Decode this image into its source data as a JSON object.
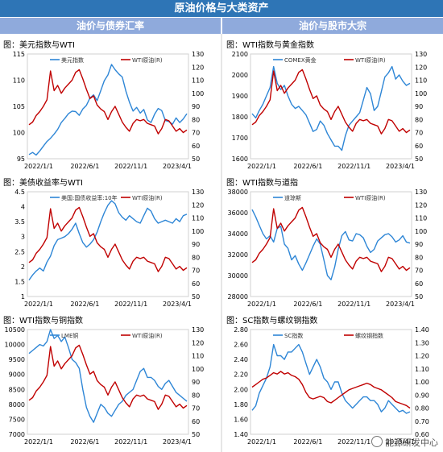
{
  "title": "原油价格与大类资产",
  "sections": {
    "left": "油价与债券汇率",
    "right": "油价与股市大宗"
  },
  "watermark": "能源研发中心",
  "colors": {
    "red": "#c00000",
    "blue": "#2e86d6"
  },
  "chart_data": [
    {
      "id": "p1",
      "type": "line",
      "title": "图：美元指数与WTI",
      "xticks": [
        "2022/1/1",
        "2022/6/1",
        "2022/11/1",
        "2023/4/1"
      ],
      "left_ylim": [
        95,
        115
      ],
      "left_ticks": [
        "95",
        "100",
        "105",
        "110",
        "115"
      ],
      "right_ylim": [
        50,
        130
      ],
      "right_ticks": [
        "50",
        "60",
        "70",
        "80",
        "90",
        "100",
        "110",
        "120",
        "130"
      ],
      "series": [
        {
          "name": "美元指数",
          "axis": "left",
          "color": "#2e86d6",
          "values": [
            95.8,
            96.2,
            95.7,
            96.5,
            97.4,
            98.3,
            98.9,
            99.7,
            100.6,
            101.9,
            102.7,
            103.6,
            104.1,
            104.0,
            103.3,
            104.5,
            105.2,
            106.6,
            107.2,
            106.1,
            108.0,
            109.9,
            111.0,
            113.0,
            112.0,
            111.2,
            110.6,
            107.9,
            105.8,
            104.1,
            104.8,
            103.7,
            104.4,
            102.4,
            101.9,
            103.5,
            104.6,
            104.2,
            102.3,
            102.1,
            101.6,
            102.8,
            101.9,
            102.6,
            103.6
          ]
        },
        {
          "name": "WTI原油(R)",
          "axis": "right",
          "color": "#c00000",
          "values": [
            76,
            78,
            83,
            86,
            90,
            95,
            117,
            102,
            106,
            100,
            104,
            107,
            110,
            116,
            118,
            111,
            103,
            96,
            98,
            91,
            88,
            86,
            80,
            86,
            90,
            84,
            78,
            74,
            71,
            77,
            80,
            79,
            80,
            77,
            76,
            75,
            69,
            73,
            80,
            79,
            75,
            71,
            73,
            70,
            72
          ]
        }
      ]
    },
    {
      "id": "p2",
      "type": "line",
      "title": "图：WTI指数与黄金指数",
      "xticks": [
        "2022/1/1",
        "2022/6/1",
        "2022/11/1",
        "2023/4/1"
      ],
      "left_ylim": [
        1600,
        2100
      ],
      "left_ticks": [
        "1600",
        "1700",
        "1800",
        "1900",
        "2000",
        "2100"
      ],
      "right_ylim": [
        50,
        130
      ],
      "right_ticks": [
        "50",
        "60",
        "70",
        "80",
        "90",
        "100",
        "110",
        "120",
        "130"
      ],
      "series": [
        {
          "name": "COMEX黄金",
          "axis": "left",
          "color": "#2e86d6",
          "values": [
            1815,
            1795,
            1830,
            1860,
            1900,
            1940,
            2040,
            1960,
            1930,
            1950,
            1900,
            1860,
            1840,
            1850,
            1830,
            1810,
            1770,
            1730,
            1740,
            1780,
            1760,
            1720,
            1690,
            1660,
            1660,
            1640,
            1710,
            1760,
            1780,
            1800,
            1820,
            1880,
            1940,
            1910,
            1830,
            1850,
            1920,
            1990,
            2010,
            2040,
            1980,
            2000,
            1970,
            1950,
            1960
          ]
        },
        {
          "name": "WTI原油(R)",
          "axis": "right",
          "color": "#c00000",
          "values": [
            76,
            78,
            83,
            86,
            90,
            95,
            117,
            102,
            106,
            100,
            104,
            107,
            110,
            116,
            118,
            111,
            103,
            96,
            98,
            91,
            88,
            86,
            80,
            86,
            90,
            84,
            78,
            74,
            71,
            77,
            80,
            79,
            80,
            77,
            76,
            75,
            69,
            73,
            80,
            79,
            75,
            71,
            73,
            70,
            72
          ]
        }
      ]
    },
    {
      "id": "p3",
      "type": "line",
      "title": "图：美债收益率与WTI",
      "xticks": [
        "2022/1/1",
        "2022/6/1",
        "2022/11/1",
        "2023/4/1"
      ],
      "left_ylim": [
        1,
        4.5
      ],
      "left_ticks": [
        "1",
        "1.5",
        "2",
        "2.5",
        "3",
        "3.5",
        "4",
        "4.5"
      ],
      "right_ylim": [
        50,
        130
      ],
      "right_ticks": [
        "50",
        "60",
        "70",
        "80",
        "90",
        "100",
        "110",
        "120",
        "130"
      ],
      "series": [
        {
          "name": "美国:国债收益率:10年",
          "axis": "left",
          "color": "#2e86d6",
          "values": [
            1.55,
            1.72,
            1.85,
            1.95,
            1.85,
            2.15,
            2.35,
            2.7,
            2.9,
            2.95,
            3.0,
            3.1,
            3.25,
            3.45,
            3.1,
            2.8,
            2.65,
            2.75,
            2.9,
            3.15,
            3.5,
            3.8,
            4.05,
            4.2,
            4.1,
            3.8,
            3.65,
            3.55,
            3.7,
            3.6,
            3.5,
            3.45,
            3.7,
            3.95,
            3.85,
            3.6,
            3.45,
            3.5,
            3.55,
            3.5,
            3.45,
            3.6,
            3.5,
            3.7,
            3.75
          ]
        },
        {
          "name": "WTI原油(R)",
          "axis": "right",
          "color": "#c00000",
          "values": [
            76,
            78,
            83,
            86,
            90,
            95,
            117,
            102,
            106,
            100,
            104,
            107,
            110,
            116,
            118,
            111,
            103,
            96,
            98,
            91,
            88,
            86,
            80,
            86,
            90,
            84,
            78,
            74,
            71,
            77,
            80,
            79,
            80,
            77,
            76,
            75,
            69,
            73,
            80,
            79,
            75,
            71,
            73,
            70,
            72
          ]
        }
      ]
    },
    {
      "id": "p4",
      "type": "line",
      "title": "图：WTI指数与道指",
      "xticks": [
        "2022/1/1",
        "2022/6/1",
        "2022/11/1",
        "2023/4/1"
      ],
      "left_ylim": [
        28000,
        38000
      ],
      "left_ticks": [
        "28000",
        "30000",
        "32000",
        "34000",
        "36000",
        "38000"
      ],
      "right_ylim": [
        50,
        130
      ],
      "right_ticks": [
        "50",
        "60",
        "70",
        "80",
        "90",
        "100",
        "110",
        "120",
        "130"
      ],
      "series": [
        {
          "name": "道琼斯",
          "axis": "left",
          "color": "#2e86d6",
          "values": [
            36300,
            35600,
            34800,
            34000,
            33500,
            33800,
            33200,
            34500,
            34700,
            33000,
            32600,
            31500,
            31900,
            31100,
            30500,
            31200,
            32000,
            32800,
            33500,
            33000,
            31500,
            30000,
            29600,
            30800,
            32500,
            33800,
            34200,
            33400,
            33300,
            34000,
            33900,
            33600,
            32800,
            32200,
            32500,
            33300,
            33600,
            33900,
            34000,
            33700,
            33200,
            33400,
            33800,
            33200,
            33100
          ]
        },
        {
          "name": "WTI原油(R)",
          "axis": "right",
          "color": "#c00000",
          "values": [
            76,
            78,
            83,
            86,
            90,
            95,
            117,
            102,
            106,
            100,
            104,
            107,
            110,
            116,
            118,
            111,
            103,
            96,
            98,
            91,
            88,
            86,
            80,
            86,
            90,
            84,
            78,
            74,
            71,
            77,
            80,
            79,
            80,
            77,
            76,
            75,
            69,
            73,
            80,
            79,
            75,
            71,
            73,
            70,
            72
          ]
        }
      ]
    },
    {
      "id": "p5",
      "type": "line",
      "title": "图：WTI指数与铜指数",
      "xticks": [
        "2022/1/1",
        "2022/6/1",
        "2022/11/1",
        "2023/4/1"
      ],
      "left_ylim": [
        7000,
        10500
      ],
      "left_ticks": [
        "7000",
        "7500",
        "8000",
        "8500",
        "9000",
        "9500",
        "10000",
        "10500"
      ],
      "right_ylim": [
        50,
        130
      ],
      "right_ticks": [
        "50",
        "60",
        "70",
        "80",
        "90",
        "100",
        "110",
        "120",
        "130"
      ],
      "series": [
        {
          "name": "LME铜",
          "axis": "left",
          "color": "#2e86d6",
          "values": [
            9700,
            9800,
            9900,
            10000,
            9950,
            10100,
            10500,
            10200,
            10300,
            10100,
            10250,
            9900,
            9500,
            9400,
            9200,
            8500,
            7900,
            7600,
            7400,
            7700,
            8000,
            7900,
            7700,
            7600,
            7800,
            8000,
            8100,
            8300,
            8400,
            8500,
            8800,
            9100,
            9200,
            8900,
            8900,
            8800,
            8600,
            8500,
            8700,
            8800,
            8600,
            8400,
            8300,
            8200,
            8100
          ]
        },
        {
          "name": "WTI原油(R)",
          "axis": "right",
          "color": "#c00000",
          "values": [
            76,
            78,
            83,
            86,
            90,
            95,
            117,
            102,
            106,
            100,
            104,
            107,
            110,
            116,
            118,
            111,
            103,
            96,
            98,
            91,
            88,
            86,
            80,
            86,
            90,
            84,
            78,
            74,
            71,
            77,
            80,
            79,
            80,
            77,
            76,
            75,
            69,
            73,
            80,
            79,
            75,
            71,
            73,
            70,
            72
          ]
        }
      ]
    },
    {
      "id": "p6",
      "type": "line",
      "title": "图：SC指数与螺纹钢指数",
      "xticks": [
        "2022/1/1",
        "2022/6/1",
        "2022/11/1",
        "2023/4/1"
      ],
      "left_ylim": [
        1.4,
        2.8
      ],
      "left_ticks": [
        "1.40",
        "1.60",
        "1.80",
        "2.00",
        "2.20",
        "2.40",
        "2.60",
        "2.80"
      ],
      "right_ylim": [
        0.6,
        1.4
      ],
      "right_ticks": [
        "0.60",
        "0.70",
        "0.80",
        "0.90",
        "1.00",
        "1.10",
        "1.20",
        "1.30",
        "1.40"
      ],
      "series": [
        {
          "name": "SC指数",
          "axis": "left",
          "color": "#2e86d6",
          "values": [
            1.72,
            1.78,
            1.95,
            2.05,
            2.15,
            2.3,
            2.6,
            2.45,
            2.45,
            2.4,
            2.5,
            2.5,
            2.55,
            2.6,
            2.5,
            2.35,
            2.2,
            2.3,
            2.4,
            2.3,
            2.15,
            2.1,
            2.0,
            2.1,
            2.1,
            1.95,
            1.85,
            1.8,
            1.75,
            1.8,
            1.85,
            1.9,
            1.9,
            1.85,
            1.85,
            1.8,
            1.7,
            1.75,
            1.85,
            1.8,
            1.75,
            1.7,
            1.72,
            1.68,
            1.7
          ]
        },
        {
          "name": "螺纹钢指数",
          "axis": "right",
          "color": "#c00000",
          "values": [
            0.96,
            0.98,
            1.0,
            1.02,
            1.03,
            1.05,
            1.07,
            1.06,
            1.08,
            1.06,
            1.07,
            1.05,
            1.04,
            1.02,
            0.98,
            0.92,
            0.88,
            0.87,
            0.88,
            0.89,
            0.88,
            0.85,
            0.84,
            0.86,
            0.88,
            0.9,
            0.92,
            0.94,
            0.95,
            0.96,
            0.97,
            0.98,
            0.99,
            0.98,
            0.96,
            0.95,
            0.94,
            0.92,
            0.9,
            0.88,
            0.85,
            0.84,
            0.83,
            0.82,
            0.8
          ]
        }
      ]
    }
  ]
}
